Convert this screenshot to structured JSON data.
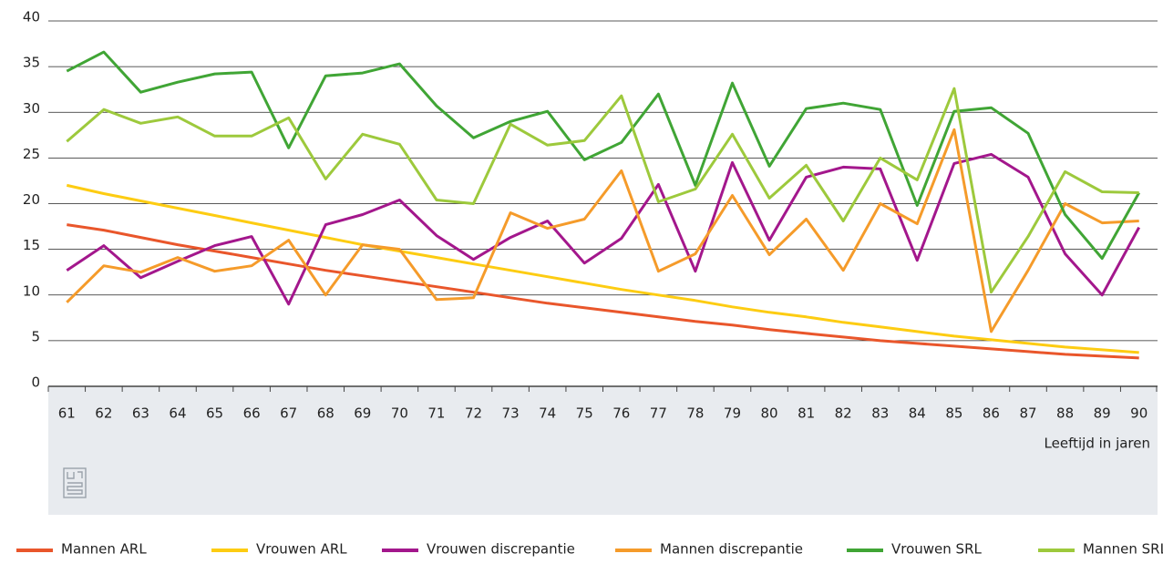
{
  "chart_data": {
    "type": "line",
    "categories": [
      "61",
      "62",
      "63",
      "64",
      "65",
      "66",
      "67",
      "68",
      "69",
      "70",
      "71",
      "72",
      "73",
      "74",
      "75",
      "76",
      "77",
      "78",
      "79",
      "80",
      "81",
      "82",
      "83",
      "84",
      "85",
      "86",
      "87",
      "88",
      "89",
      "90"
    ],
    "x_label": "Leeftijd in jaren",
    "ylim": [
      0,
      40
    ],
    "yticks": [
      0,
      5,
      10,
      15,
      20,
      25,
      30,
      35,
      40
    ],
    "grid": true,
    "legend": "bottom",
    "series": [
      {
        "name": "Mannen ARL",
        "color": "#e9562b",
        "values": [
          17.7,
          17.1,
          16.3,
          15.5,
          14.8,
          14.1,
          13.4,
          12.7,
          12.1,
          11.5,
          10.9,
          10.3,
          9.7,
          9.1,
          8.6,
          8.1,
          7.6,
          7.1,
          6.7,
          6.2,
          5.8,
          5.4,
          5.0,
          4.7,
          4.4,
          4.1,
          3.8,
          3.5,
          3.3,
          3.1
        ]
      },
      {
        "name": "Vrouwen ARL",
        "color": "#fdcc12",
        "values": [
          22.0,
          21.1,
          20.3,
          19.5,
          18.7,
          17.9,
          17.1,
          16.3,
          15.5,
          14.8,
          14.1,
          13.4,
          12.7,
          12.0,
          11.3,
          10.6,
          10.0,
          9.4,
          8.7,
          8.1,
          7.6,
          7.0,
          6.5,
          6.0,
          5.5,
          5.1,
          4.7,
          4.3,
          4.0,
          3.7
        ]
      },
      {
        "name": "Vrouwen discrepantie",
        "color": "#a3178c",
        "values": [
          12.7,
          15.4,
          11.9,
          13.7,
          15.4,
          16.4,
          9.0,
          17.7,
          18.8,
          20.4,
          16.5,
          13.9,
          16.3,
          18.1,
          13.5,
          16.2,
          22.1,
          12.6,
          24.5,
          16.0,
          22.9,
          24.0,
          23.8,
          13.8,
          24.4,
          25.4,
          22.9,
          14.5,
          10.0,
          17.4
        ]
      },
      {
        "name": "Mannen discrepantie",
        "color": "#f59b2a",
        "values": [
          9.2,
          13.2,
          12.5,
          14.1,
          12.6,
          13.2,
          16.0,
          10.0,
          15.5,
          15.0,
          9.5,
          9.7,
          19.0,
          17.3,
          18.3,
          23.6,
          12.6,
          14.5,
          20.9,
          14.4,
          18.3,
          12.7,
          20.0,
          17.8,
          28.1,
          6.0,
          12.7,
          20.0,
          17.9,
          18.1
        ]
      },
      {
        "name": "Vrouwen SRL",
        "color": "#40a535",
        "values": [
          34.5,
          36.6,
          32.2,
          33.3,
          34.2,
          34.4,
          26.1,
          34.0,
          34.3,
          35.3,
          30.7,
          27.2,
          29.0,
          30.1,
          24.8,
          26.7,
          32.0,
          22.0,
          33.2,
          24.1,
          30.4,
          31.0,
          30.3,
          19.8,
          30.1,
          30.5,
          27.7,
          18.8,
          14.0,
          21.2
        ]
      },
      {
        "name": "Mannen SRL",
        "color": "#9dc93c",
        "values": [
          26.8,
          30.3,
          28.8,
          29.5,
          27.4,
          27.4,
          29.4,
          22.7,
          27.6,
          26.5,
          20.4,
          20.0,
          28.7,
          26.4,
          26.9,
          31.8,
          20.2,
          21.6,
          27.6,
          20.6,
          24.2,
          18.1,
          25.0,
          22.6,
          32.6,
          10.3,
          16.4,
          23.5,
          21.3,
          21.2
        ]
      }
    ]
  }
}
